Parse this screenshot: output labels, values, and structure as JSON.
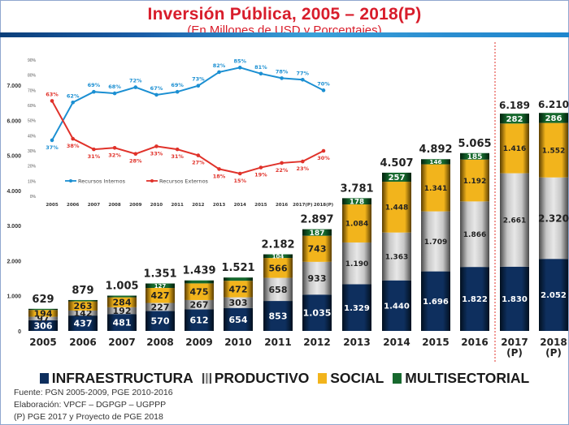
{
  "header": {
    "title": "Inversión Pública, 2005 – 2018(P)",
    "subtitle": "(En Millones de USD y Porcentajes)"
  },
  "colors": {
    "title": "#d81d2b",
    "infraestructura": "#0e2f5e",
    "productivo": "#bfbfbf",
    "social": "#f2b41c",
    "multisectorial": "#17692e",
    "internos": "#1b8fd2",
    "externos": "#e0322a",
    "projection_divider": "#e0322a"
  },
  "chart_data": [
    {
      "type": "bar",
      "stacked": true,
      "title": "Inversión Pública, 2005 – 2018(P)",
      "ylabel": "Millones de USD",
      "ylim": [
        0,
        7000
      ],
      "yticks": [
        "0",
        "1.000",
        "2.000",
        "3.000",
        "4.000",
        "5.000",
        "6.000",
        "7.000"
      ],
      "yticks_values": [
        0,
        1000,
        2000,
        3000,
        4000,
        5000,
        6000,
        7000
      ],
      "categories": [
        "2005",
        "2006",
        "2007",
        "2008",
        "2009",
        "2010",
        "2011",
        "2012",
        "2013",
        "2014",
        "2015",
        "2016",
        "2017\n(P)",
        "2018\n(P)"
      ],
      "category_lines": [
        [
          "2005"
        ],
        [
          "2006"
        ],
        [
          "2007"
        ],
        [
          "2008"
        ],
        [
          "2009"
        ],
        [
          "2010"
        ],
        [
          "2011"
        ],
        [
          "2012"
        ],
        [
          "2013"
        ],
        [
          "2014"
        ],
        [
          "2015"
        ],
        [
          "2016"
        ],
        [
          "2017",
          "(P)"
        ],
        [
          "2018",
          "(P)"
        ]
      ],
      "series": [
        {
          "name": "INFRAESTRUCTURA",
          "values": [
            306,
            437,
            481,
            570,
            612,
            654,
            853,
            1035,
            1329,
            1440,
            1696,
            1822,
            1830,
            2052
          ],
          "labels": [
            "306",
            "437",
            "481",
            "570",
            "612",
            "654",
            "853",
            "1.035",
            "1.329",
            "1.440",
            "1.696",
            "1.822",
            "1.830",
            "2.052"
          ]
        },
        {
          "name": "PRODUCTIVO",
          "values": [
            97,
            142,
            192,
            227,
            267,
            303,
            658,
            933,
            1190,
            1363,
            1709,
            1866,
            2661,
            2320
          ],
          "labels": [
            "97",
            "142",
            "192",
            "227",
            "267",
            "303",
            "658",
            "933",
            "1.190",
            "1.363",
            "1.709",
            "1.866",
            "2.661",
            "2.320"
          ]
        },
        {
          "name": "SOCIAL",
          "values": [
            194,
            263,
            284,
            427,
            475,
            472,
            566,
            743,
            1084,
            1448,
            1341,
            1192,
            1416,
            1552
          ],
          "labels": [
            "194",
            "263",
            "284",
            "427",
            "475",
            "472",
            "566",
            "743",
            "1.084",
            "1.448",
            "1.341",
            "1.192",
            "1.416",
            "1.552"
          ]
        },
        {
          "name": "MULTISECTORIAL",
          "values": [
            32,
            37,
            48,
            127,
            85,
            92,
            104,
            187,
            178,
            257,
            146,
            185,
            282,
            286
          ],
          "labels": [
            "",
            "",
            "",
            "127",
            "",
            "",
            "104",
            "187",
            "178",
            "257",
            "146",
            "185",
            "282",
            "286"
          ]
        }
      ],
      "totals": [
        629,
        879,
        1005,
        1351,
        1439,
        1521,
        2182,
        2897,
        3781,
        4507,
        4892,
        5065,
        6189,
        6210
      ],
      "total_labels": [
        "629",
        "879",
        "1.005",
        "1.351",
        "1.439",
        "1.521",
        "2.182",
        "2.897",
        "3.781",
        "4.507",
        "4.892",
        "5.065",
        "6.189",
        "6.210"
      ],
      "projection_start": "2017\n(P)",
      "legend": [
        "INFRAESTRUCTURA",
        "PRODUCTIVO",
        "SOCIAL",
        "MULTISECTORIAL"
      ],
      "legend_position": "bottom",
      "grid": false
    },
    {
      "type": "line",
      "title": "",
      "ylim": [
        0,
        90
      ],
      "yticks": [
        "0%",
        "10%",
        "20%",
        "30%",
        "40%",
        "50%",
        "60%",
        "70%",
        "80%",
        "90%"
      ],
      "yticks_values": [
        0,
        10,
        20,
        30,
        40,
        50,
        60,
        70,
        80,
        90
      ],
      "x": [
        "2005",
        "2006",
        "2007",
        "2008",
        "2009",
        "2010",
        "2011",
        "2012",
        "2013",
        "2014",
        "2015",
        "2016",
        "2017(P)",
        "2018(P)"
      ],
      "series": [
        {
          "name": "Recursos Internos",
          "values": [
            37,
            62,
            69,
            68,
            72,
            67,
            69,
            73,
            82,
            85,
            81,
            78,
            77,
            70
          ],
          "labels": [
            "37%",
            "62%",
            "69%",
            "68%",
            "72%",
            "67%",
            "69%",
            "73%",
            "82%",
            "85%",
            "81%",
            "78%",
            "77%",
            "70%"
          ]
        },
        {
          "name": "Recursos Externos",
          "values": [
            63,
            38,
            31,
            32,
            28,
            33,
            31,
            27,
            18,
            15,
            19,
            22,
            23,
            30
          ],
          "labels": [
            "63%",
            "38%",
            "31%",
            "32%",
            "28%",
            "33%",
            "31%",
            "27%",
            "18%",
            "15%",
            "19%",
            "22%",
            "23%",
            "30%"
          ]
        }
      ],
      "legend": [
        "Recursos Internos",
        "Recursos Externos"
      ],
      "legend_position": "inside-bottom-left",
      "grid": false
    }
  ],
  "legend": {
    "items": [
      "INFRAESTRUCTURA",
      "PRODUCTIVO",
      "SOCIAL",
      "MULTISECTORIAL"
    ]
  },
  "notes": {
    "fuente": "Fuente: PGN 2005-2009, PGE 2010-2016",
    "elaboracion": "Elaboración: VPCF – DGPGP – UGPPP",
    "proyeccion": "(P) PGE 2017 y Proyecto de PGE 2018"
  }
}
